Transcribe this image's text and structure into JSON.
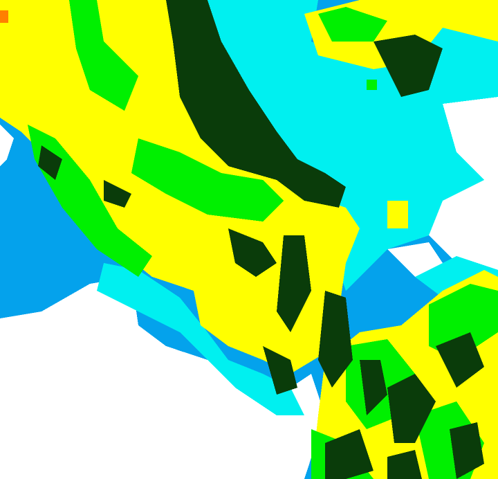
{
  "map": {
    "colors": {
      "clear": "#ffffff",
      "level1": "#04a2ec",
      "level2": "#00f0f0",
      "level3": "#00f000",
      "level4": "#ffff00",
      "level5": "#0a3c0a",
      "level6": "#ff8000"
    }
  }
}
